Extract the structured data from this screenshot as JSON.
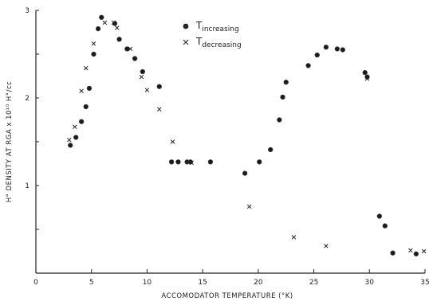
{
  "chart_data": {
    "type": "scatter",
    "xlabel": "ACCOMODATOR TEMPERATURE  (°K)",
    "ylabel": "H° DENSITY AT RGA  x 10¹⁰  H°/cc",
    "xlim": [
      0,
      35
    ],
    "ylim": [
      0,
      3
    ],
    "xticks": [
      "0",
      "5",
      "10",
      "15",
      "20",
      "25",
      "30",
      "35"
    ],
    "yticks": [
      "1",
      "2",
      "3"
    ],
    "legend": [
      {
        "marker": "filled-circle",
        "symbol": "T",
        "subscript": "increasing"
      },
      {
        "marker": "x",
        "symbol": "T",
        "subscript": "decreasing"
      }
    ],
    "series": [
      {
        "marker": "filled-circle",
        "x": [
          3.1,
          3.6,
          4.1,
          4.5,
          4.8,
          5.2,
          5.6,
          5.9,
          7.1,
          7.5,
          8.2,
          8.9,
          9.6,
          11.1,
          12.2,
          12.8,
          13.6,
          13.9,
          15.7,
          18.8,
          20.1,
          21.1,
          21.9,
          22.2,
          22.5,
          24.5,
          25.3,
          26.1,
          27.1,
          27.6,
          29.6,
          29.8,
          30.9,
          31.4,
          32.1,
          34.2
        ],
        "y": [
          1.46,
          1.55,
          1.73,
          1.9,
          2.11,
          2.5,
          2.79,
          2.92,
          2.85,
          2.67,
          2.56,
          2.45,
          2.3,
          2.13,
          1.27,
          1.27,
          1.27,
          1.27,
          1.27,
          1.14,
          1.27,
          1.41,
          1.75,
          2.01,
          2.18,
          2.37,
          2.49,
          2.58,
          2.56,
          2.55,
          2.29,
          2.24,
          0.65,
          0.54,
          0.23,
          0.22
        ]
      },
      {
        "marker": "x",
        "x": [
          3.0,
          3.5,
          4.1,
          4.5,
          5.2,
          6.2,
          7.0,
          7.3,
          8.5,
          9.5,
          10.0,
          11.1,
          12.3,
          14.0,
          19.2,
          23.2,
          26.1,
          29.8,
          33.7,
          34.9
        ],
        "y": [
          1.52,
          1.67,
          2.08,
          2.34,
          2.62,
          2.86,
          2.86,
          2.8,
          2.56,
          2.24,
          2.09,
          1.87,
          1.5,
          1.26,
          0.76,
          0.41,
          0.31,
          2.22,
          0.26,
          0.25
        ]
      }
    ]
  }
}
